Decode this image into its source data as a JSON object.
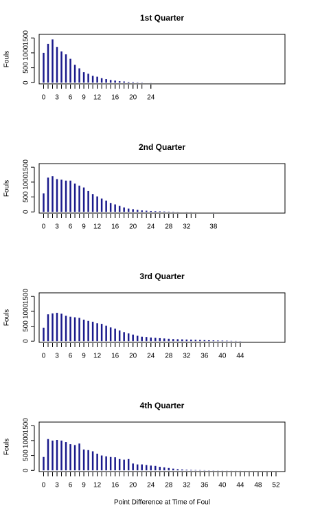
{
  "chart_data": [
    {
      "type": "bar",
      "title": "1st Quarter",
      "ylabel": "Fouls",
      "color": "#1a1a8c",
      "x": [
        0,
        1,
        2,
        3,
        4,
        5,
        6,
        7,
        8,
        9,
        10,
        11,
        12,
        13,
        14,
        15,
        16,
        17,
        18,
        19,
        20,
        21,
        22,
        24
      ],
      "values": [
        1000,
        1300,
        1450,
        1200,
        1050,
        950,
        800,
        600,
        480,
        350,
        300,
        230,
        200,
        150,
        120,
        90,
        70,
        50,
        40,
        25,
        20,
        12,
        8,
        3
      ],
      "xlim": [
        -1,
        54
      ],
      "xticks": [
        0,
        3,
        6,
        9,
        12,
        16,
        20,
        24
      ],
      "ylim": [
        -40,
        1620
      ],
      "yticks": [
        0,
        500,
        1000,
        1500
      ]
    },
    {
      "type": "bar",
      "title": "2nd Quarter",
      "ylabel": "Fouls",
      "color": "#1a1a8c",
      "x": [
        0,
        1,
        2,
        3,
        4,
        5,
        6,
        7,
        8,
        9,
        10,
        11,
        12,
        13,
        14,
        15,
        16,
        17,
        18,
        19,
        20,
        21,
        22,
        23,
        24,
        25,
        26,
        27,
        28,
        29,
        30,
        32,
        33,
        34,
        38
      ],
      "values": [
        620,
        1150,
        1200,
        1100,
        1080,
        1050,
        1050,
        950,
        880,
        820,
        700,
        600,
        520,
        450,
        380,
        300,
        250,
        200,
        150,
        110,
        90,
        70,
        50,
        40,
        30,
        25,
        20,
        15,
        10,
        8,
        5,
        4,
        3,
        2,
        2
      ],
      "xlim": [
        -1,
        54
      ],
      "xticks": [
        0,
        3,
        6,
        9,
        12,
        16,
        20,
        24,
        28,
        32,
        38
      ],
      "ylim": [
        -40,
        1620
      ],
      "yticks": [
        0,
        500,
        1000,
        1500
      ]
    },
    {
      "type": "bar",
      "title": "3rd Quarter",
      "ylabel": "Fouls",
      "color": "#1a1a8c",
      "x": [
        0,
        1,
        2,
        3,
        4,
        5,
        6,
        7,
        8,
        9,
        10,
        11,
        12,
        13,
        14,
        15,
        16,
        17,
        18,
        19,
        20,
        21,
        22,
        23,
        24,
        25,
        26,
        27,
        28,
        29,
        30,
        31,
        32,
        33,
        34,
        35,
        36,
        37,
        38,
        39,
        40,
        41,
        42,
        43,
        44
      ],
      "values": [
        450,
        900,
        930,
        950,
        920,
        850,
        820,
        800,
        780,
        720,
        680,
        650,
        600,
        580,
        520,
        460,
        420,
        360,
        300,
        260,
        220,
        180,
        150,
        140,
        120,
        110,
        100,
        90,
        80,
        70,
        65,
        60,
        55,
        50,
        45,
        40,
        35,
        30,
        25,
        20,
        18,
        15,
        10,
        8,
        5
      ],
      "xlim": [
        -1,
        54
      ],
      "xticks": [
        0,
        3,
        6,
        9,
        12,
        16,
        20,
        24,
        28,
        32,
        36,
        40,
        44
      ],
      "ylim": [
        -40,
        1620
      ],
      "yticks": [
        0,
        500,
        1000,
        1500
      ]
    },
    {
      "type": "bar",
      "title": "4th Quarter",
      "ylabel": "Fouls",
      "xlabel": "Point Difference at Time of Foul",
      "color": "#1a1a8c",
      "x": [
        0,
        1,
        2,
        3,
        4,
        5,
        6,
        7,
        8,
        9,
        10,
        11,
        12,
        13,
        14,
        15,
        16,
        17,
        18,
        19,
        20,
        21,
        22,
        23,
        24,
        25,
        26,
        27,
        28,
        29,
        30,
        31,
        32,
        33,
        34,
        35,
        36,
        37,
        38,
        39,
        40,
        41,
        42,
        43,
        44,
        45,
        46,
        47,
        48,
        49,
        50,
        51,
        52
      ],
      "values": [
        450,
        1050,
        1000,
        1020,
        1000,
        950,
        880,
        850,
        900,
        700,
        680,
        640,
        560,
        500,
        470,
        450,
        440,
        380,
        360,
        380,
        230,
        200,
        200,
        180,
        160,
        150,
        120,
        100,
        80,
        60,
        40,
        30,
        20,
        15,
        12,
        10,
        8,
        6,
        5,
        4,
        3,
        3,
        2,
        2,
        2,
        1,
        1,
        1,
        1,
        1,
        1,
        1,
        1
      ],
      "xlim": [
        -1,
        54
      ],
      "xticks": [
        0,
        3,
        6,
        9,
        12,
        16,
        20,
        24,
        28,
        32,
        36,
        40,
        44,
        48,
        52
      ],
      "ylim": [
        -40,
        1620
      ],
      "yticks": [
        0,
        500,
        1000,
        1500
      ]
    }
  ]
}
